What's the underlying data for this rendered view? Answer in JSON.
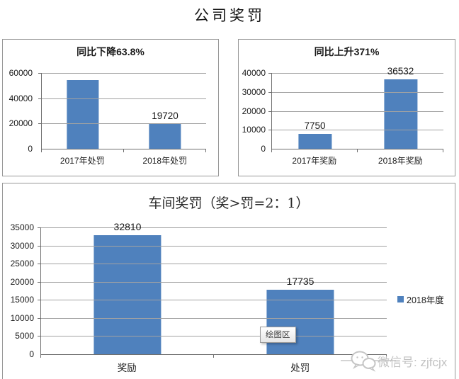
{
  "page": {
    "title": "公司奖罚"
  },
  "tooltip": {
    "label": "绘图区"
  },
  "watermark": {
    "label": "微信号: zjfcjx",
    "icon": "wechat-icon",
    "color": "#c5c5c5"
  },
  "colors": {
    "bar_blue": "#4f81bd",
    "gridline": "#a2a2a2",
    "axis": "#6f6f6f",
    "panel_border": "#979797"
  },
  "chart_data": [
    {
      "type": "bar",
      "title": "同比下降63.8%",
      "categories": [
        "2017年处罚",
        "2018年处罚"
      ],
      "values": [
        54475,
        19720
      ],
      "data_labels": [
        "",
        "19720"
      ],
      "yticks": [
        0,
        20000,
        40000,
        60000
      ],
      "ylim": [
        0,
        60000
      ],
      "grid": true,
      "legend_position": "none",
      "color": "#4f81bd"
    },
    {
      "type": "bar",
      "title": "同比上升371%",
      "categories": [
        "2017年奖励",
        "2018年奖励"
      ],
      "values": [
        7750,
        36532
      ],
      "data_labels": [
        "7750",
        "36532"
      ],
      "yticks": [
        0,
        10000,
        20000,
        30000,
        40000
      ],
      "ylim": [
        0,
        40000
      ],
      "grid": true,
      "legend_position": "none",
      "color": "#4f81bd"
    },
    {
      "type": "bar",
      "title": "车间奖罚（奖>罚=2：1）",
      "categories": [
        "奖励",
        "处罚"
      ],
      "values": [
        32810,
        17735
      ],
      "data_labels": [
        "32810",
        "17735"
      ],
      "yticks": [
        0,
        5000,
        10000,
        15000,
        20000,
        25000,
        30000,
        35000
      ],
      "ylim": [
        0,
        35000
      ],
      "grid": true,
      "series_name": "2018年度",
      "legend_position": "right",
      "color": "#4f81bd"
    }
  ]
}
